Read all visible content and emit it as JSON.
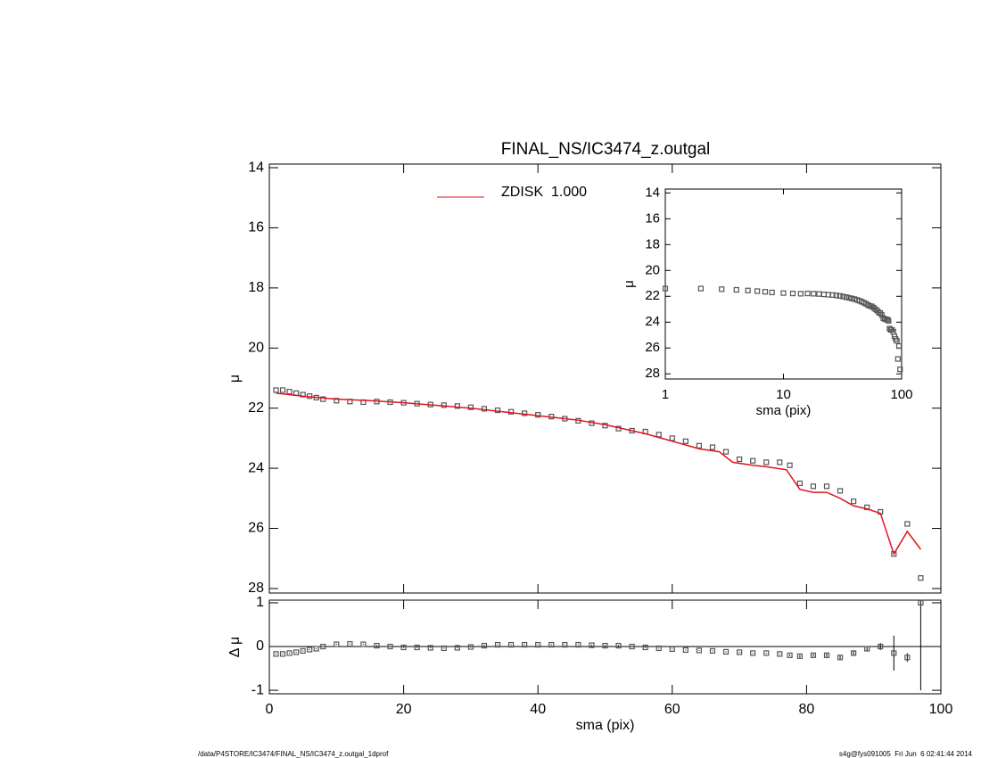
{
  "chart_data": [
    {
      "type": "line",
      "title": "FINAL_NS/IC3474_z.outgal",
      "ylabel": "μ",
      "xlim": [
        0,
        100
      ],
      "ylim": [
        28.15,
        13.88
      ],
      "yticks": [
        14,
        16,
        18,
        20,
        22,
        24,
        26,
        28
      ],
      "series": [
        {
          "marker": "square",
          "color": "#555555",
          "x": [
            1,
            2,
            3,
            4,
            5,
            6,
            7,
            8,
            10,
            12,
            14,
            16,
            18,
            20,
            22,
            24,
            26,
            28,
            30,
            32,
            34,
            36,
            38,
            40,
            42,
            44,
            46,
            48,
            50,
            52,
            54,
            56,
            58,
            60,
            62,
            64,
            66,
            68,
            70,
            72,
            74,
            76,
            77.5,
            79,
            81,
            83,
            85,
            87,
            89,
            91,
            93,
            95,
            97
          ],
          "values": [
            21.4,
            21.4,
            21.45,
            21.5,
            21.55,
            21.6,
            21.65,
            21.7,
            21.75,
            21.78,
            21.8,
            21.78,
            21.8,
            21.82,
            21.85,
            21.88,
            21.9,
            21.93,
            21.97,
            22.02,
            22.07,
            22.12,
            22.17,
            22.22,
            22.28,
            22.35,
            22.42,
            22.5,
            22.58,
            22.68,
            22.75,
            22.78,
            22.88,
            23.0,
            23.1,
            23.25,
            23.3,
            23.45,
            23.7,
            23.75,
            23.8,
            23.8,
            23.9,
            24.5,
            24.6,
            24.6,
            24.75,
            25.1,
            25.3,
            25.45,
            26.85,
            25.85,
            27.65
          ]
        },
        {
          "name": "ZDISK  1.000",
          "color": "#e0141e",
          "x": [
            1,
            5,
            10,
            15,
            20,
            30,
            40,
            46,
            50,
            56,
            60,
            64,
            67,
            69,
            72,
            74,
            77,
            79,
            81,
            83,
            85,
            87,
            89,
            91,
            93,
            95,
            97
          ],
          "values": [
            21.5,
            21.6,
            21.7,
            21.75,
            21.82,
            22.0,
            22.25,
            22.4,
            22.55,
            22.85,
            23.1,
            23.35,
            23.45,
            23.8,
            23.9,
            23.95,
            24.05,
            24.7,
            24.8,
            24.8,
            25.0,
            25.25,
            25.35,
            25.5,
            26.85,
            26.1,
            26.7
          ]
        }
      ]
    },
    {
      "type": "scatter",
      "xlabel": "sma (pix)",
      "ylabel": "Δ μ",
      "xlim": [
        0,
        100
      ],
      "xticks": [
        0,
        20,
        40,
        60,
        80,
        100
      ],
      "ylim": [
        -1.08,
        1.06
      ],
      "yticks": [
        -1,
        0,
        1
      ],
      "reference_line": 0,
      "color": "#555555",
      "x": [
        1,
        2,
        3,
        4,
        5,
        6,
        7,
        8,
        10,
        12,
        14,
        16,
        18,
        20,
        22,
        24,
        26,
        28,
        30,
        32,
        34,
        36,
        38,
        40,
        42,
        44,
        46,
        48,
        50,
        52,
        54,
        56,
        58,
        60,
        62,
        64,
        66,
        68,
        70,
        72,
        74,
        76,
        77.5,
        79,
        81,
        83,
        85,
        87,
        89,
        91,
        93,
        95,
        97
      ],
      "values": [
        -0.17,
        -0.17,
        -0.15,
        -0.13,
        -0.1,
        -0.07,
        -0.05,
        0,
        0.05,
        0.06,
        0.05,
        0.02,
        0,
        -0.02,
        -0.02,
        -0.03,
        -0.04,
        -0.03,
        -0.01,
        0.02,
        0.04,
        0.04,
        0.04,
        0.04,
        0.04,
        0.04,
        0.04,
        0.03,
        0.02,
        0.02,
        0,
        -0.02,
        -0.04,
        -0.06,
        -0.08,
        -0.09,
        -0.1,
        -0.12,
        -0.13,
        -0.15,
        -0.15,
        -0.17,
        -0.2,
        -0.22,
        -0.2,
        -0.2,
        -0.25,
        -0.15,
        -0.05,
        0.0,
        -0.15,
        -0.25,
        1.0
      ],
      "errors": [
        0.01,
        0.01,
        0.01,
        0.01,
        0.01,
        0.01,
        0.01,
        0.01,
        0.01,
        0.01,
        0.01,
        0.01,
        0.01,
        0.01,
        0.01,
        0.01,
        0.01,
        0.01,
        0.01,
        0.01,
        0.01,
        0.01,
        0.01,
        0.01,
        0.01,
        0.01,
        0.01,
        0.01,
        0.01,
        0.01,
        0.01,
        0.01,
        0.01,
        0.01,
        0.01,
        0.01,
        0.01,
        0.01,
        0.01,
        0.01,
        0.01,
        0.01,
        0.02,
        0.03,
        0.03,
        0.04,
        0.04,
        0.05,
        0.06,
        0.08,
        0.4,
        0.1,
        2.0
      ]
    },
    {
      "type": "scatter",
      "xlabel": "sma (pix)",
      "ylabel": "μ",
      "xlog": true,
      "xlim": [
        1,
        100
      ],
      "xticks": [
        1,
        10,
        100
      ],
      "ylim": [
        28.4,
        13.7
      ],
      "yticks": [
        14,
        16,
        18,
        20,
        22,
        24,
        26,
        28
      ],
      "color": "#555555",
      "x": [
        1,
        2,
        3,
        4,
        5,
        6,
        7,
        8,
        10,
        12,
        14,
        16,
        18,
        20,
        22,
        24,
        26,
        28,
        30,
        32,
        34,
        36,
        38,
        40,
        42,
        44,
        46,
        48,
        50,
        52,
        54,
        56,
        58,
        60,
        62,
        64,
        66,
        68,
        70,
        72,
        74,
        76,
        77.5,
        79,
        81,
        83,
        85,
        87,
        89,
        91,
        93,
        95,
        97
      ],
      "values": [
        21.4,
        21.4,
        21.45,
        21.5,
        21.55,
        21.6,
        21.65,
        21.7,
        21.75,
        21.78,
        21.8,
        21.78,
        21.8,
        21.82,
        21.85,
        21.88,
        21.9,
        21.93,
        21.97,
        22.02,
        22.07,
        22.12,
        22.17,
        22.22,
        22.28,
        22.35,
        22.42,
        22.5,
        22.58,
        22.68,
        22.75,
        22.78,
        22.88,
        23.0,
        23.1,
        23.25,
        23.3,
        23.45,
        23.7,
        23.75,
        23.8,
        23.8,
        23.9,
        24.5,
        24.6,
        24.6,
        24.75,
        25.1,
        25.3,
        25.45,
        26.85,
        25.85,
        27.65
      ]
    }
  ],
  "footer": {
    "left": "/data/P4STORE/IC3474/FINAL_NS/IC3474_z.outgal_1dprof",
    "right": "s4g@fys091005  Fri Jun  6 02:41:44 2014"
  }
}
